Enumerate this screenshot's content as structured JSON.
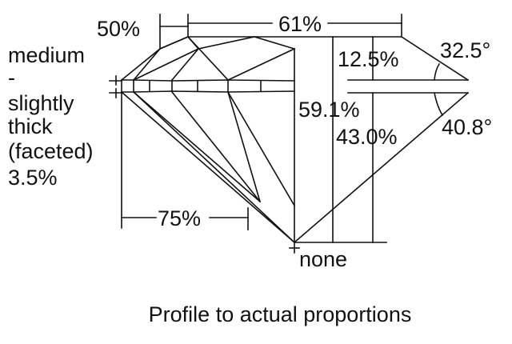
{
  "girdle_label": [
    "medium",
    "-",
    "slightly",
    "thick",
    "(faceted)",
    "3.5%"
  ],
  "measurements": {
    "star_length": "50%",
    "table": "61%",
    "crown_height": "12.5%",
    "crown_angle": "32.5°",
    "total_depth": "59.1%",
    "pavilion_depth": "43.0%",
    "pavilion_angle": "40.8°",
    "lower_half_length": "75%",
    "culet": "none"
  },
  "caption": "Profile to actual proportions"
}
